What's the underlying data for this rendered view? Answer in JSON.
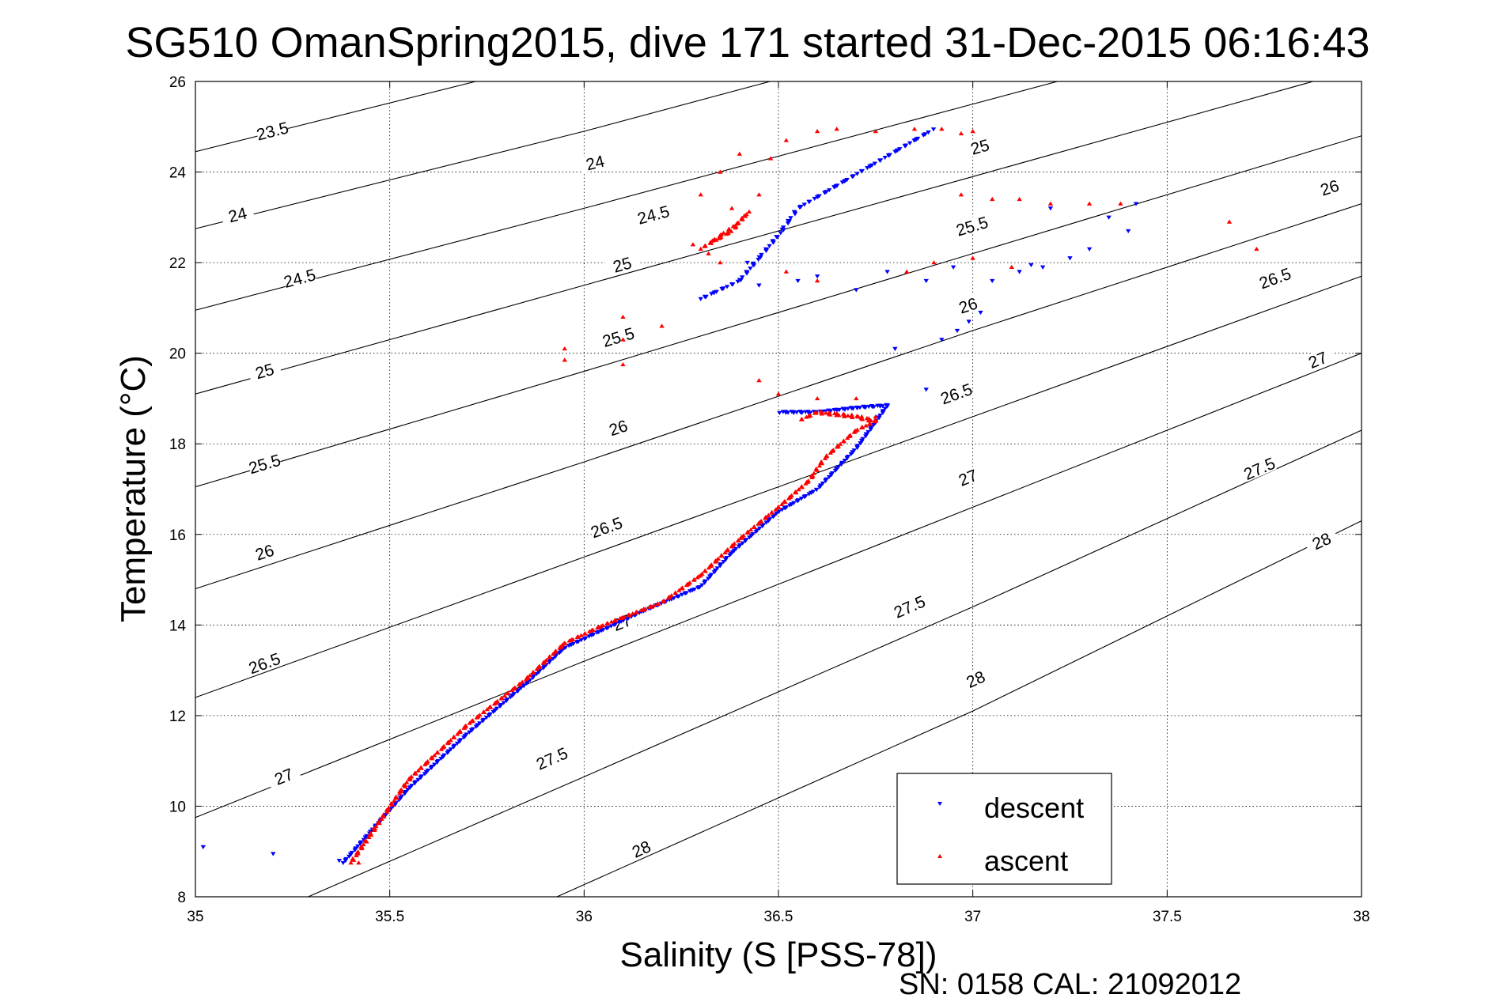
{
  "title": "SG510 OmanSpring2015, dive 171 started 31-Dec-2015 06:16:43",
  "footer": "SN: 0158  CAL: 21092012",
  "chart_data": {
    "type": "scatter",
    "xlabel": "Salinity (S [PSS-78])",
    "ylabel": "Temperature (°C)",
    "xlim": [
      35,
      38
    ],
    "ylim": [
      8,
      26
    ],
    "xticks": [
      35,
      35.5,
      36,
      36.5,
      37,
      37.5,
      38
    ],
    "xtick_labels": [
      "35",
      "35.5",
      "36",
      "36.5",
      "37",
      "37.5",
      "38"
    ],
    "yticks": [
      8,
      10,
      12,
      14,
      16,
      18,
      20,
      22,
      24,
      26
    ],
    "ytick_labels": [
      "8",
      "10",
      "12",
      "14",
      "16",
      "18",
      "20",
      "22",
      "24",
      "26"
    ],
    "grid": true,
    "legend_position": "bottom-right",
    "density_contours": {
      "color": "#000000",
      "lines": [
        {
          "label": "23.5",
          "points": [
            [
              35,
              24.45
            ],
            [
              36,
              26.6
            ]
          ],
          "label_at": [
            35.2,
            24.85
          ]
        },
        {
          "label": "24",
          "points": [
            [
              35,
              22.75
            ],
            [
              36,
              24.9
            ],
            [
              37,
              27.2
            ]
          ],
          "label_at": [
            36.03,
            24.15
          ]
        },
        {
          "label": "24",
          "points": [],
          "label_at": [
            35.11,
            23.0
          ]
        },
        {
          "label": "24.5",
          "points": [
            [
              35,
              20.95
            ],
            [
              36,
              23.2
            ],
            [
              37,
              25.5
            ],
            [
              38,
              27.8
            ]
          ],
          "label_at": [
            36.18,
            23.0
          ]
        },
        {
          "label": "24.5",
          "points": [],
          "label_at": [
            35.27,
            21.6
          ]
        },
        {
          "label": "25",
          "points": [
            [
              35,
              19.1
            ],
            [
              36,
              21.5
            ],
            [
              37,
              23.9
            ],
            [
              38,
              26.3
            ]
          ],
          "label_at": [
            36.1,
            21.9
          ]
        },
        {
          "label": "25",
          "points": [],
          "label_at": [
            35.18,
            19.55
          ]
        },
        {
          "label": "25",
          "points": [],
          "label_at": [
            37.02,
            24.5
          ]
        },
        {
          "label": "25.5",
          "points": [
            [
              35,
              17.05
            ],
            [
              36,
              19.6
            ],
            [
              37,
              22.2
            ],
            [
              38,
              24.8
            ]
          ],
          "label_at": [
            36.09,
            20.3
          ]
        },
        {
          "label": "25.5",
          "points": [],
          "label_at": [
            35.18,
            17.5
          ]
        },
        {
          "label": "25.5",
          "points": [],
          "label_at": [
            37.0,
            22.75
          ]
        },
        {
          "label": "26",
          "points": [
            [
              35,
              14.8
            ],
            [
              36,
              17.6
            ],
            [
              37,
              20.5
            ],
            [
              38,
              23.3
            ]
          ],
          "label_at": [
            36.09,
            18.3
          ]
        },
        {
          "label": "26",
          "points": [],
          "label_at": [
            35.18,
            15.55
          ]
        },
        {
          "label": "26",
          "points": [],
          "label_at": [
            36.99,
            21.0
          ]
        },
        {
          "label": "26",
          "points": [],
          "label_at": [
            37.92,
            23.6
          ]
        },
        {
          "label": "26.5",
          "points": [
            [
              35,
              12.4
            ],
            [
              36,
              15.5
            ],
            [
              37,
              18.6
            ],
            [
              38,
              21.7
            ]
          ],
          "label_at": [
            36.06,
            16.1
          ]
        },
        {
          "label": "26.5",
          "points": [],
          "label_at": [
            35.18,
            13.1
          ]
        },
        {
          "label": "26.5",
          "points": [],
          "label_at": [
            36.96,
            19.05
          ]
        },
        {
          "label": "26.5",
          "points": [],
          "label_at": [
            37.78,
            21.6
          ]
        },
        {
          "label": "27",
          "points": [
            [
              35,
              9.75
            ],
            [
              36,
              13.2
            ],
            [
              37,
              16.6
            ],
            [
              38,
              20.0
            ]
          ],
          "label_at": [
            36.1,
            14.0
          ]
        },
        {
          "label": "27",
          "points": [],
          "label_at": [
            35.23,
            10.6
          ]
        },
        {
          "label": "27",
          "points": [],
          "label_at": [
            36.99,
            17.2
          ]
        },
        {
          "label": "27",
          "points": [],
          "label_at": [
            37.89,
            19.8
          ]
        },
        {
          "label": "27.5",
          "points": [
            [
              35.29,
              8.0
            ],
            [
              36,
              10.65
            ],
            [
              37,
              14.4
            ],
            [
              38,
              18.3
            ]
          ],
          "label_at": [
            35.92,
            11.0
          ]
        },
        {
          "label": "27.5",
          "points": [],
          "label_at": [
            36.84,
            14.35
          ]
        },
        {
          "label": "27.5",
          "points": [],
          "label_at": [
            37.74,
            17.4
          ]
        },
        {
          "label": "28",
          "points": [
            [
              35.93,
              8.0
            ],
            [
              37,
              12.1
            ],
            [
              38,
              16.3
            ]
          ],
          "label_at": [
            36.15,
            9.0
          ]
        },
        {
          "label": "28",
          "points": [],
          "label_at": [
            37.01,
            12.75
          ]
        },
        {
          "label": "28",
          "points": [],
          "label_at": [
            37.9,
            15.8
          ]
        }
      ]
    },
    "series": [
      {
        "name": "descent",
        "color": "#0000ff",
        "marker": "down-triangle",
        "path": [
          [
            35.38,
            8.75
          ],
          [
            35.55,
            10.4
          ],
          [
            35.7,
            11.6
          ],
          [
            35.85,
            12.7
          ],
          [
            35.95,
            13.5
          ],
          [
            36.05,
            13.9
          ],
          [
            36.15,
            14.3
          ],
          [
            36.3,
            14.85
          ],
          [
            36.38,
            15.6
          ],
          [
            36.5,
            16.5
          ],
          [
            36.6,
            17.0
          ],
          [
            36.7,
            17.9
          ],
          [
            36.76,
            18.6
          ],
          [
            36.78,
            18.85
          ],
          [
            36.7,
            18.8
          ],
          [
            36.6,
            18.7
          ],
          [
            36.5,
            18.7
          ]
        ],
        "path2": [
          [
            36.3,
            21.2
          ],
          [
            36.4,
            21.6
          ],
          [
            36.5,
            22.6
          ],
          [
            36.55,
            23.2
          ],
          [
            36.65,
            23.7
          ],
          [
            36.75,
            24.2
          ],
          [
            36.85,
            24.7
          ],
          [
            36.9,
            24.95
          ]
        ],
        "scatter": [
          [
            35.02,
            9.1
          ],
          [
            35.2,
            8.95
          ],
          [
            35.37,
            8.8
          ],
          [
            36.92,
            20.3
          ],
          [
            36.96,
            20.5
          ],
          [
            36.99,
            20.7
          ],
          [
            37.02,
            20.9
          ],
          [
            37.12,
            21.8
          ],
          [
            37.18,
            21.9
          ],
          [
            37.25,
            22.1
          ],
          [
            37.3,
            22.3
          ],
          [
            37.4,
            22.7
          ],
          [
            37.42,
            23.3
          ],
          [
            37.35,
            23.0
          ],
          [
            37.2,
            23.2
          ],
          [
            37.15,
            21.95
          ],
          [
            37.05,
            21.6
          ],
          [
            36.95,
            21.9
          ],
          [
            36.88,
            21.6
          ],
          [
            36.78,
            21.8
          ],
          [
            36.7,
            21.4
          ],
          [
            36.6,
            21.7
          ],
          [
            36.55,
            21.6
          ],
          [
            36.45,
            21.5
          ],
          [
            36.42,
            22.0
          ],
          [
            36.8,
            20.1
          ],
          [
            36.88,
            19.2
          ]
        ]
      },
      {
        "name": "ascent",
        "color": "#ff0000",
        "marker": "up-triangle",
        "path": [
          [
            35.4,
            8.75
          ],
          [
            35.55,
            10.6
          ],
          [
            35.7,
            11.8
          ],
          [
            35.85,
            12.8
          ],
          [
            35.95,
            13.6
          ],
          [
            36.05,
            14.0
          ],
          [
            36.2,
            14.5
          ],
          [
            36.3,
            15.1
          ],
          [
            36.4,
            15.9
          ],
          [
            36.5,
            16.6
          ],
          [
            36.58,
            17.2
          ],
          [
            36.62,
            17.7
          ],
          [
            36.7,
            18.3
          ],
          [
            36.75,
            18.5
          ],
          [
            36.7,
            18.6
          ],
          [
            36.6,
            18.7
          ],
          [
            36.55,
            18.5
          ]
        ],
        "path2": [
          [
            36.3,
            22.3
          ],
          [
            36.35,
            22.6
          ],
          [
            36.4,
            22.9
          ],
          [
            36.42,
            23.1
          ],
          [
            36.38,
            22.7
          ],
          [
            36.32,
            22.4
          ]
        ],
        "scatter": [
          [
            35.42,
            8.75
          ],
          [
            35.95,
            20.1
          ],
          [
            35.95,
            19.85
          ],
          [
            36.1,
            20.3
          ],
          [
            36.1,
            20.8
          ],
          [
            36.1,
            19.75
          ],
          [
            36.2,
            20.6
          ],
          [
            36.32,
            22.2
          ],
          [
            36.28,
            22.4
          ],
          [
            36.35,
            22.0
          ],
          [
            36.45,
            23.5
          ],
          [
            36.38,
            23.2
          ],
          [
            36.3,
            23.5
          ],
          [
            36.35,
            24.0
          ],
          [
            36.4,
            24.4
          ],
          [
            36.48,
            24.3
          ],
          [
            36.52,
            24.7
          ],
          [
            36.6,
            24.9
          ],
          [
            36.65,
            24.95
          ],
          [
            36.75,
            24.9
          ],
          [
            36.85,
            24.95
          ],
          [
            36.92,
            24.95
          ],
          [
            36.97,
            24.85
          ],
          [
            37.0,
            24.9
          ],
          [
            36.97,
            23.5
          ],
          [
            37.05,
            23.4
          ],
          [
            37.12,
            23.4
          ],
          [
            37.2,
            23.3
          ],
          [
            37.3,
            23.3
          ],
          [
            37.38,
            23.3
          ],
          [
            37.66,
            22.9
          ],
          [
            37.73,
            22.3
          ],
          [
            37.1,
            21.9
          ],
          [
            37.0,
            22.1
          ],
          [
            36.9,
            22.0
          ],
          [
            36.83,
            21.8
          ],
          [
            36.6,
            21.6
          ],
          [
            36.52,
            21.8
          ],
          [
            36.45,
            19.4
          ],
          [
            36.5,
            19.1
          ],
          [
            36.6,
            19.0
          ],
          [
            36.7,
            19.0
          ],
          [
            36.75,
            18.6
          ]
        ]
      }
    ]
  }
}
